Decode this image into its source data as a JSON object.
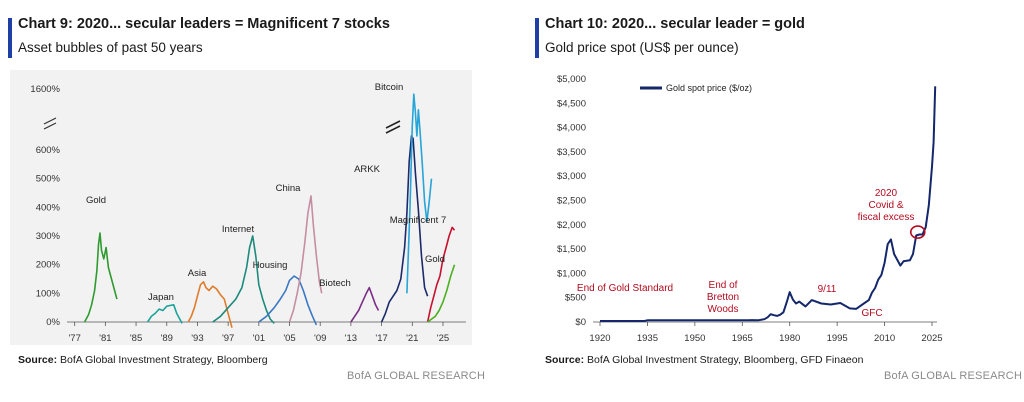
{
  "brand": "BofA GLOBAL RESEARCH",
  "charts": [
    {
      "title": "Chart 9: 2020... secular leaders = Magnificent 7 stocks",
      "subtitle": "Asset bubbles of past 50 years",
      "source_label": "Source:",
      "source_text": "BofA Global Investment Strategy, Bloomberg"
    },
    {
      "title": "Chart 10: 2020... secular leader = gold",
      "subtitle": "Gold price spot (US$  per ounce)",
      "source_label": "Source:",
      "source_text": "BofA Global Investment Strategy, Bloomberg, GFD Finaeon"
    }
  ],
  "chart_data": [
    {
      "type": "line",
      "title": "Chart 9: 2020... secular leaders = Magnificent 7 stocks",
      "subtitle": "Asset bubbles of past 50 years",
      "x_ticks": [
        "'77",
        "'81",
        "'85",
        "'89",
        "'93",
        "'97",
        "'01",
        "'05",
        "'09",
        "'13",
        "'17",
        "'21",
        "'25"
      ],
      "y_ticks": [
        "0%",
        "100%",
        "200%",
        "300%",
        "400%",
        "500%",
        "600%",
        "1600%"
      ],
      "y_axis_break": true,
      "xlim": [
        1976,
        2028
      ],
      "grid": false,
      "colors": {
        "Gold": "#2f9a2f",
        "Japan": "#1aa39a",
        "Asia": "#e07b2a",
        "Internet": "#1d8a7d",
        "Housing": "#3b78c4",
        "China": "#c58ea3",
        "Biotech": "#7b2f86",
        "ARKK": "#1b2a6b",
        "Bitcoin": "#27a4d8",
        "Magnificent 7": "#c8102e",
        "Gold (2023-)": "#4caf1f"
      },
      "series": [
        {
          "name": "Gold",
          "x": [
            1978.3,
            1978.8,
            1979.2,
            1979.6,
            1979.9,
            1980.1,
            1980.3,
            1980.5,
            1980.8,
            1981.1,
            1981.4,
            1981.8,
            1982.2,
            1982.5
          ],
          "y": [
            0,
            25,
            60,
            110,
            180,
            270,
            310,
            250,
            220,
            260,
            190,
            150,
            110,
            80
          ]
        },
        {
          "name": "Japan",
          "x": [
            1986.5,
            1987.0,
            1987.5,
            1988.0,
            1988.5,
            1989.0,
            1989.5,
            1989.9,
            1990.3,
            1990.7,
            1991.0
          ],
          "y": [
            0,
            20,
            30,
            45,
            40,
            55,
            58,
            60,
            30,
            10,
            -5
          ]
        },
        {
          "name": "Asia",
          "x": [
            1991.8,
            1992.2,
            1992.6,
            1993.0,
            1993.4,
            1993.8,
            1994.1,
            1994.5,
            1995.0,
            1995.5,
            1996.0,
            1996.5,
            1997.0,
            1997.5
          ],
          "y": [
            0,
            20,
            50,
            90,
            130,
            140,
            120,
            110,
            125,
            115,
            95,
            80,
            30,
            -20
          ]
        },
        {
          "name": "Internet",
          "x": [
            1995.0,
            1996.0,
            1997.0,
            1998.0,
            1998.8,
            1999.4,
            1999.8,
            2000.2,
            2000.6,
            2001.0,
            2001.5,
            2002.0,
            2002.5,
            2003.0
          ],
          "y": [
            0,
            20,
            50,
            80,
            120,
            190,
            260,
            300,
            230,
            130,
            80,
            40,
            10,
            -5
          ]
        },
        {
          "name": "Housing",
          "x": [
            2001.0,
            2002.0,
            2003.0,
            2003.8,
            2004.5,
            2005.0,
            2005.6,
            2006.2,
            2006.8,
            2007.4,
            2008.0,
            2008.5
          ],
          "y": [
            0,
            20,
            50,
            80,
            110,
            145,
            160,
            150,
            110,
            60,
            20,
            -10
          ]
        },
        {
          "name": "China",
          "x": [
            2005.0,
            2005.5,
            2006.0,
            2006.5,
            2007.0,
            2007.4,
            2007.8,
            2008.1,
            2008.5,
            2008.9,
            2009.2
          ],
          "y": [
            0,
            40,
            100,
            170,
            280,
            380,
            440,
            340,
            230,
            140,
            100
          ]
        },
        {
          "name": "Biotech",
          "x": [
            2013.0,
            2013.5,
            2014.0,
            2014.5,
            2015.0,
            2015.4,
            2015.8,
            2016.2,
            2016.6
          ],
          "y": [
            0,
            20,
            40,
            70,
            100,
            120,
            90,
            60,
            40
          ]
        },
        {
          "name": "ARKK",
          "x": [
            2017.0,
            2017.5,
            2018.0,
            2018.5,
            2019.0,
            2019.5,
            2020.0,
            2020.3,
            2020.6,
            2020.9,
            2021.1,
            2021.4,
            2021.8,
            2022.2,
            2022.6,
            2023.0
          ],
          "y": [
            0,
            30,
            70,
            90,
            110,
            150,
            260,
            380,
            560,
            700,
            650,
            520,
            390,
            230,
            120,
            90
          ]
        },
        {
          "name": "Bitcoin",
          "x": [
            2020.3,
            2020.7,
            2021.0,
            2021.2,
            2021.4,
            2021.6,
            2021.8,
            2022.0,
            2022.3,
            2022.6,
            2022.9,
            2023.2,
            2023.5
          ],
          "y": [
            100,
            400,
            900,
            1500,
            1150,
            700,
            1200,
            800,
            550,
            420,
            350,
            420,
            500
          ]
        },
        {
          "name": "Magnificent 7",
          "x": [
            2023.0,
            2023.4,
            2023.8,
            2024.2,
            2024.6,
            2025.0,
            2025.4,
            2025.8,
            2026.2,
            2026.5
          ],
          "y": [
            0,
            50,
            90,
            130,
            160,
            220,
            260,
            300,
            330,
            320
          ]
        },
        {
          "name": "Gold (2023-)",
          "x": [
            2023.0,
            2023.5,
            2024.0,
            2024.5,
            2025.0,
            2025.5,
            2026.0,
            2026.5
          ],
          "y": [
            0,
            10,
            20,
            40,
            70,
            110,
            160,
            200
          ]
        }
      ],
      "annotations": [
        "Gold",
        "Japan",
        "Asia",
        "Internet",
        "Housing",
        "China",
        "Biotech",
        "ARKK",
        "Bitcoin",
        "Magnificent 7",
        "Gold"
      ]
    },
    {
      "type": "line",
      "title": "Chart 10: 2020... secular leader = gold",
      "subtitle": "Gold price spot (US$  per ounce)",
      "x_ticks": [
        1920,
        1935,
        1950,
        1965,
        1980,
        1995,
        2010,
        2025
      ],
      "y_ticks": [
        "$0",
        "$500",
        "$1,000",
        "$1,500",
        "$2,000",
        "$2,500",
        "$3,000",
        "$3,500",
        "$4,000",
        "$4,500",
        "$5,000"
      ],
      "xlim": [
        1920,
        2030
      ],
      "ylim": [
        0,
        5000
      ],
      "grid": false,
      "legend": "top-left",
      "colors": {
        "line": "#14276b",
        "annotation": "#b40a1e"
      },
      "series": [
        {
          "name": "Gold spot price ($/oz)",
          "x": [
            1920,
            1934,
            1935,
            1967,
            1968,
            1970,
            1972,
            1973,
            1974,
            1975,
            1976,
            1977,
            1978,
            1979,
            1980,
            1981,
            1982,
            1983,
            1985,
            1987,
            1990,
            1993,
            1996,
            1999,
            2001,
            2003,
            2005,
            2006,
            2007,
            2008,
            2009,
            2010,
            2011,
            2012,
            2013,
            2015,
            2016,
            2018,
            2019,
            2020,
            2021,
            2022,
            2023,
            2024,
            2025,
            2025.5,
            2026
          ],
          "y": [
            20,
            20,
            35,
            35,
            40,
            36,
            58,
            97,
            160,
            140,
            125,
            150,
            200,
            400,
            615,
            460,
            380,
            420,
            320,
            450,
            380,
            360,
            390,
            280,
            270,
            360,
            450,
            600,
            700,
            870,
            970,
            1220,
            1600,
            1700,
            1400,
            1160,
            1250,
            1270,
            1400,
            1780,
            1800,
            1800,
            1950,
            2400,
            3200,
            3700,
            4850
          ]
        }
      ],
      "annotations": [
        "End of Gold Standard",
        "End of Bretton Woods",
        "9/11",
        "GFC",
        "2020 Covid & fiscal excess"
      ]
    }
  ]
}
